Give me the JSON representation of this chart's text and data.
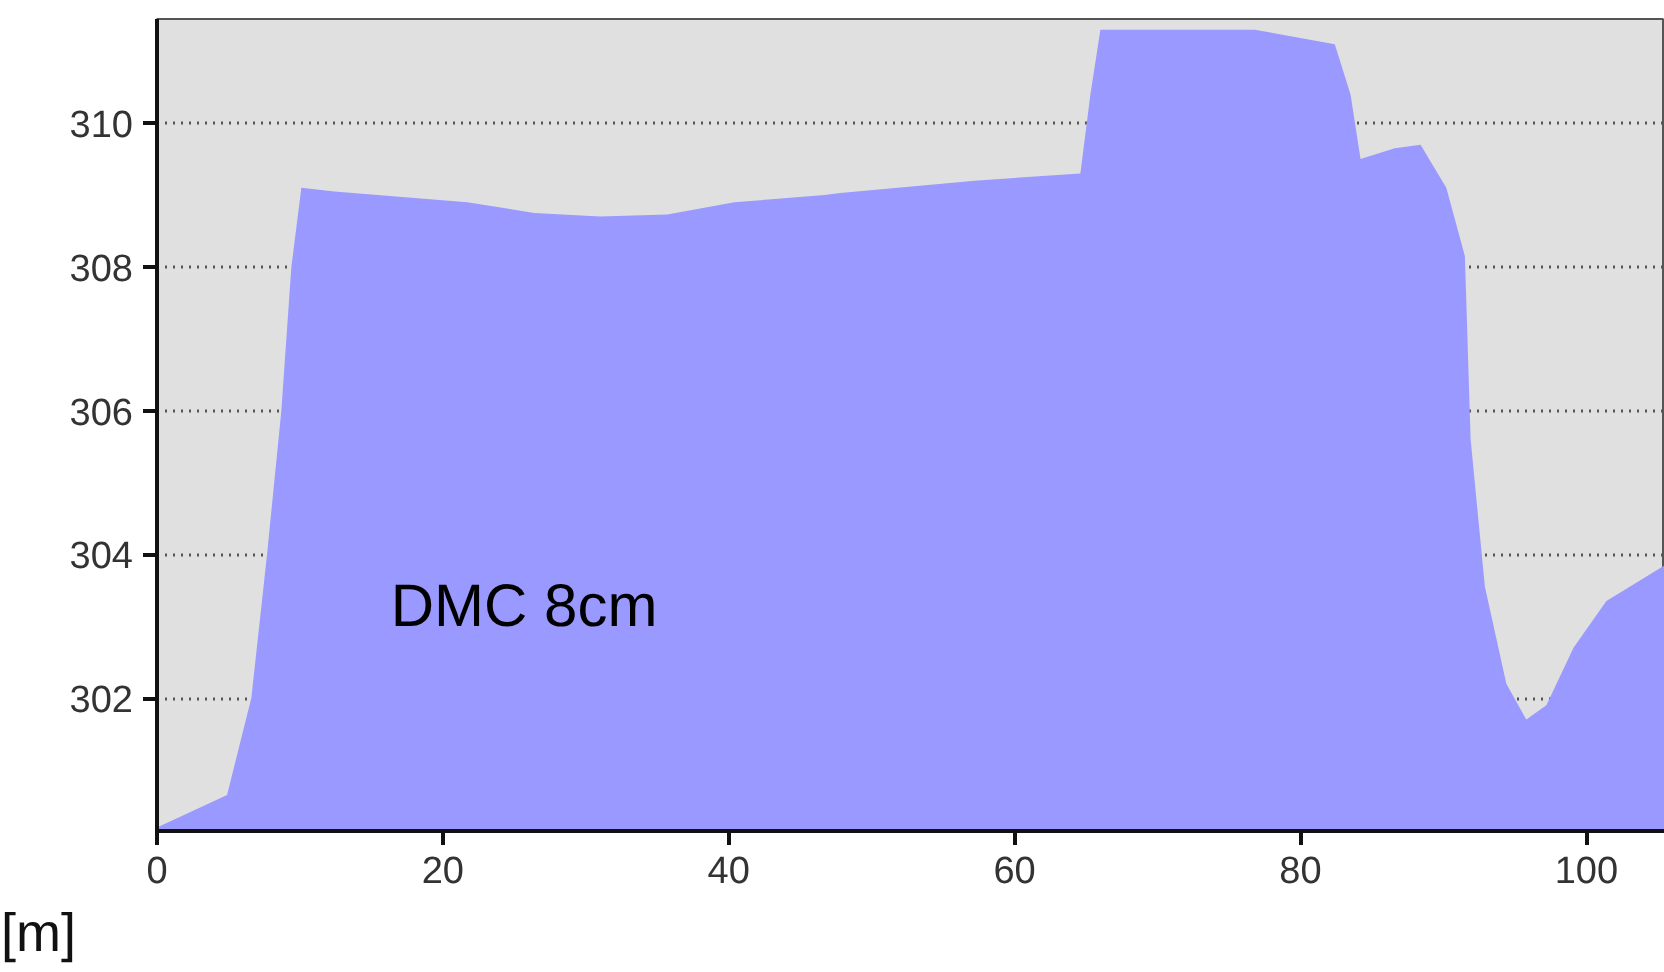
{
  "chart_data": {
    "type": "area",
    "xlabel": "[m]",
    "annotations": [
      "DMC 8cm"
    ],
    "x": [
      0,
      4.9,
      6.6,
      7.7,
      8.7,
      9.4,
      10.1,
      12.4,
      21.7,
      26.4,
      31,
      35.7,
      40.4,
      46.7,
      47.8,
      57.2,
      64.6,
      65.3,
      66,
      76.8,
      82.4,
      83.5,
      84.2,
      86.6,
      88.4,
      90.2,
      91.5,
      91.9,
      92.9,
      94.4,
      95.8,
      97.2,
      99.1,
      101.4,
      105.5
    ],
    "series": [
      {
        "color": "#9999ff",
        "values": [
          300.2,
          300.65,
          302,
          304,
          306,
          308,
          309.1,
          309.05,
          308.9,
          308.75,
          308.7,
          308.73,
          308.9,
          309.0,
          309.03,
          309.2,
          309.3,
          310.4,
          311.3,
          311.3,
          311.1,
          310.4,
          309.5,
          309.65,
          309.7,
          309.1,
          308.15,
          305.6,
          303.55,
          302.2,
          301.7,
          301.9,
          302.7,
          303.35,
          303.85
        ]
      }
    ],
    "xlim": [
      0,
      105.5
    ],
    "ylim": [
      300.15,
      311.45
    ],
    "xticks": [
      0,
      20,
      40,
      60,
      80,
      100
    ],
    "yticks": [
      302,
      304,
      306,
      308,
      310
    ],
    "grid": "y"
  }
}
